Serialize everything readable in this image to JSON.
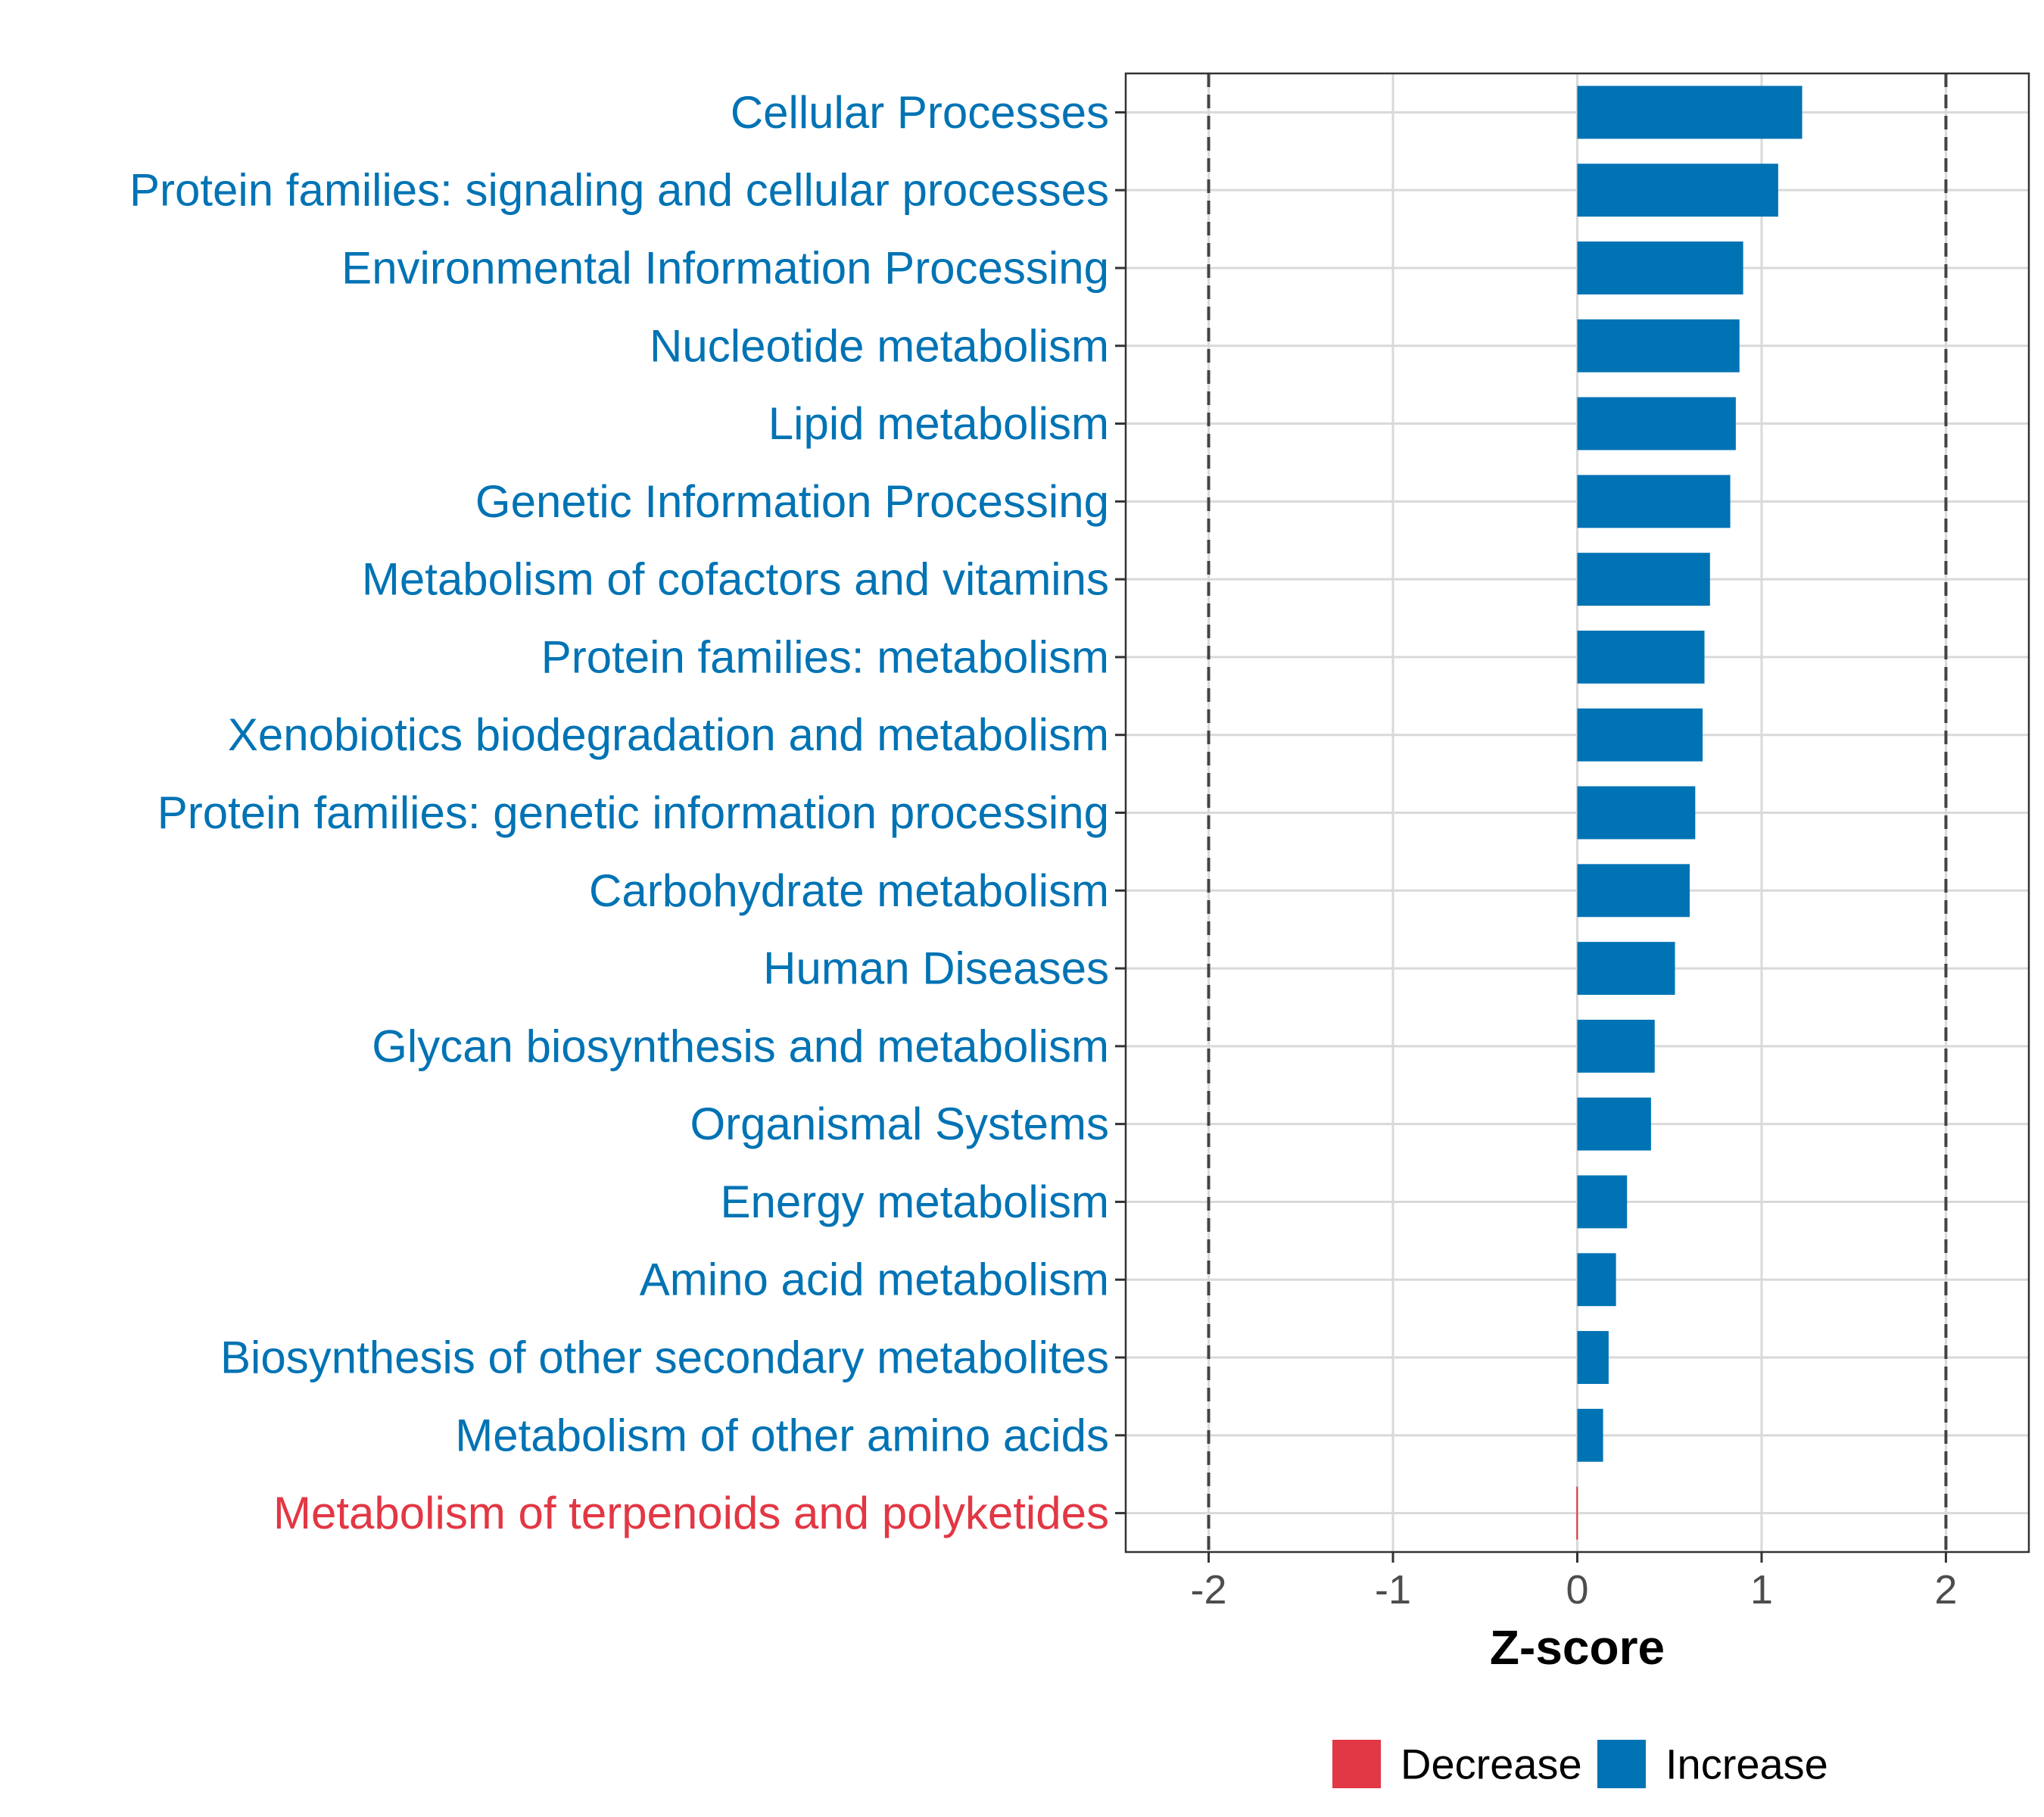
{
  "chart_data": {
    "type": "bar",
    "orientation": "horizontal",
    "title": "",
    "xlabel": "Z-score",
    "ylabel": "",
    "xlim": [
      -2.45,
      2.45
    ],
    "x_ticks": [
      -2,
      -1,
      0,
      1,
      2
    ],
    "reference_lines": [
      -2,
      2
    ],
    "grid": true,
    "legend_position": "bottom",
    "categories": [
      "Cellular Processes",
      "Protein families: signaling and cellular processes",
      "Environmental Information Processing",
      "Nucleotide metabolism",
      "Lipid metabolism",
      "Genetic Information Processing",
      "Metabolism of cofactors and vitamins",
      "Protein families: metabolism",
      "Xenobiotics biodegradation and metabolism",
      "Protein families: genetic information processing",
      "Carbohydrate metabolism",
      "Human Diseases",
      "Glycan biosynthesis and metabolism",
      "Organismal Systems",
      "Energy metabolism",
      "Amino acid metabolism",
      "Biosynthesis of other secondary metabolites",
      "Metabolism of other amino acids",
      "Metabolism of terpenoids and polyketides"
    ],
    "values": [
      1.22,
      1.09,
      0.9,
      0.88,
      0.86,
      0.83,
      0.72,
      0.69,
      0.68,
      0.64,
      0.61,
      0.53,
      0.42,
      0.4,
      0.27,
      0.21,
      0.17,
      0.14,
      -0.005
    ],
    "groups": [
      "Increase",
      "Increase",
      "Increase",
      "Increase",
      "Increase",
      "Increase",
      "Increase",
      "Increase",
      "Increase",
      "Increase",
      "Increase",
      "Increase",
      "Increase",
      "Increase",
      "Increase",
      "Increase",
      "Increase",
      "Increase",
      "Decrease"
    ],
    "legend": [
      {
        "label": "Decrease",
        "color": "#E23744"
      },
      {
        "label": "Increase",
        "color": "#0073B4"
      }
    ],
    "colors": {
      "Decrease": "#E23744",
      "Increase": "#0073B4"
    }
  }
}
